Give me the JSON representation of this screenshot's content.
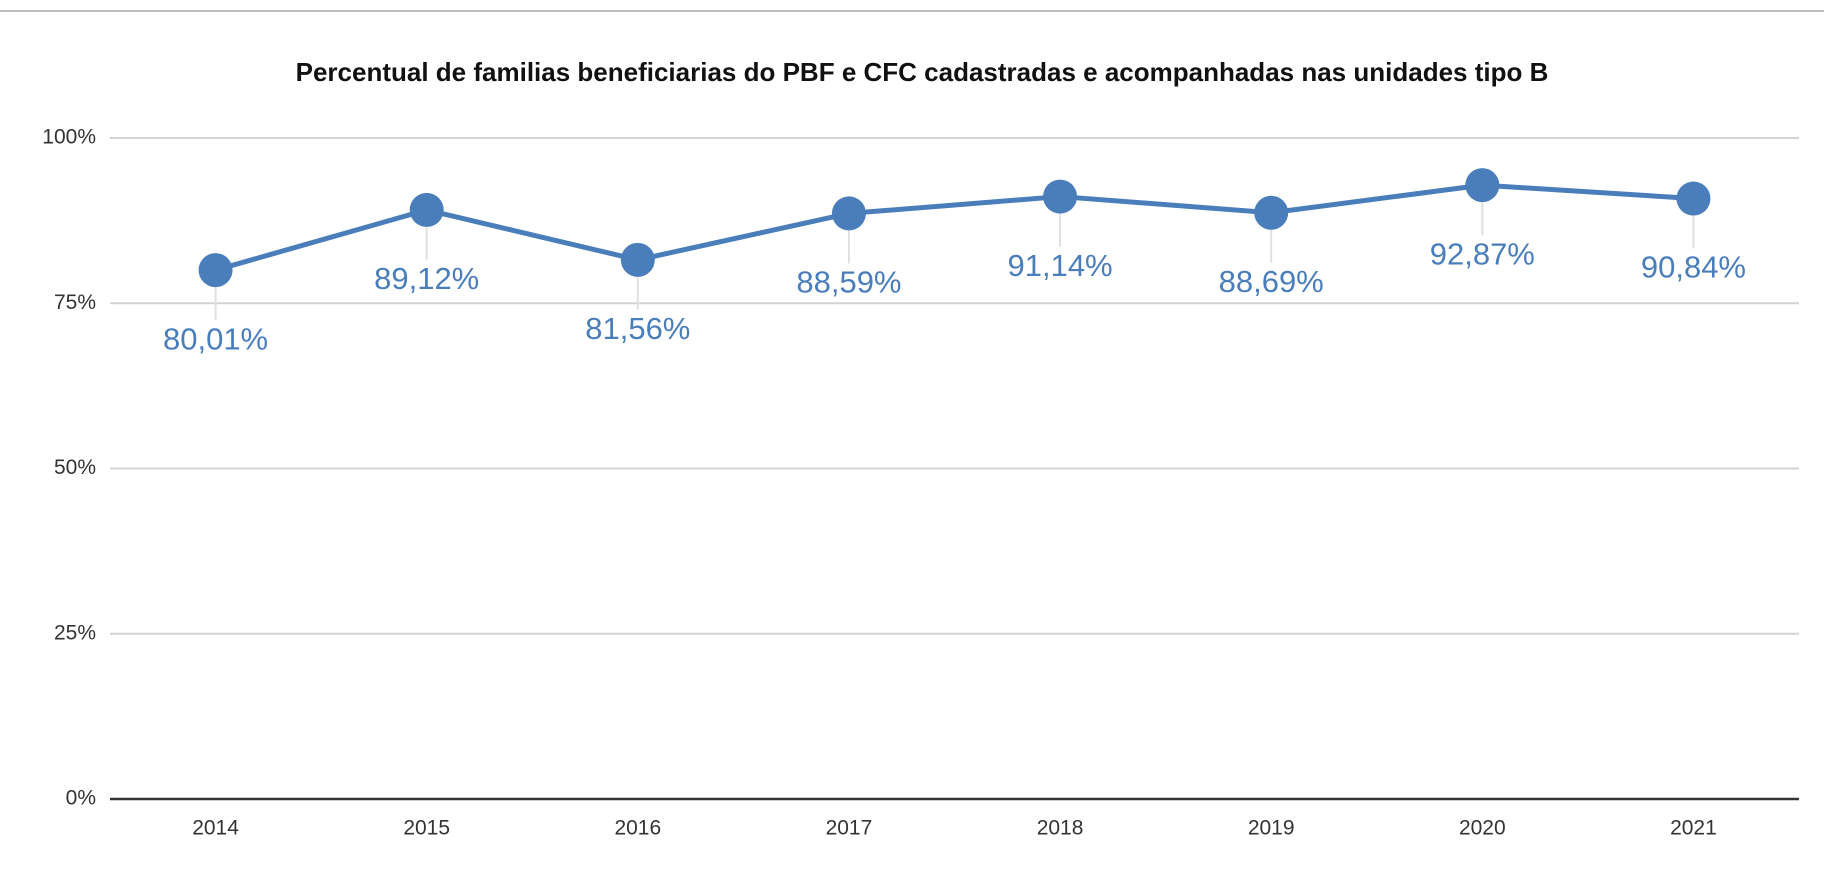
{
  "chart_data": {
    "type": "line",
    "title": "Percentual de familias beneficiarias do PBF e CFC cadastradas e acompanhadas nas unidades tipo B",
    "categories": [
      "2014",
      "2015",
      "2016",
      "2017",
      "2018",
      "2019",
      "2020",
      "2021"
    ],
    "values": [
      80.01,
      89.12,
      81.56,
      88.59,
      91.14,
      88.69,
      92.87,
      90.84
    ],
    "value_labels": [
      "80,01%",
      "89,12%",
      "81,56%",
      "88,59%",
      "91,14%",
      "88,69%",
      "92,87%",
      "90,84%"
    ],
    "color": "#4a7ebb",
    "ylim": [
      0,
      100
    ],
    "yticks": [
      {
        "value": 0,
        "label": "0%"
      },
      {
        "value": 25,
        "label": "25%"
      },
      {
        "value": 50,
        "label": "50%"
      },
      {
        "value": 75,
        "label": "75%"
      },
      {
        "value": 100,
        "label": "100%"
      }
    ],
    "grid": true
  }
}
